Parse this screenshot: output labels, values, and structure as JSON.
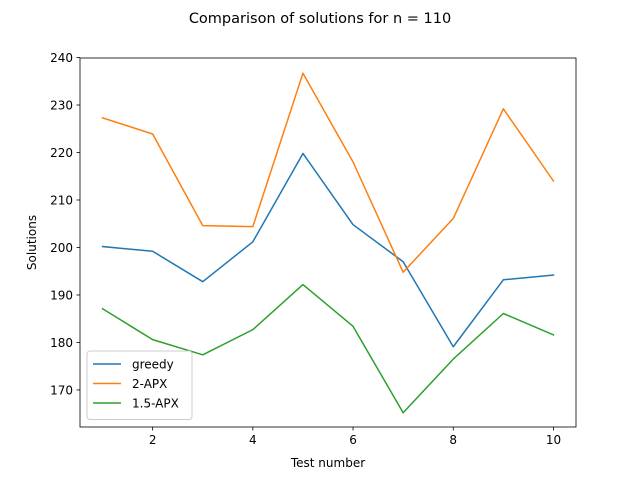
{
  "chart_data": {
    "type": "line",
    "title": "Comparison of solutions for n = 110",
    "xlabel": "Test number",
    "ylabel": "Solutions",
    "x": [
      1,
      2,
      3,
      4,
      5,
      6,
      7,
      8,
      9,
      10
    ],
    "xlim": [
      0.55,
      10.45
    ],
    "ylim": [
      162.2,
      239.9
    ],
    "xticks": [
      2,
      4,
      6,
      8,
      10
    ],
    "yticks": [
      170,
      180,
      190,
      200,
      210,
      220,
      230,
      240
    ],
    "grid": false,
    "legend": "lower-left",
    "series": [
      {
        "name": "greedy",
        "color": "#1f77b4",
        "values": [
          200.2,
          199.2,
          192.8,
          201.2,
          219.8,
          204.8,
          197.0,
          179.1,
          193.2,
          194.2
        ]
      },
      {
        "name": "2-APX",
        "color": "#ff7f0e",
        "values": [
          227.3,
          223.9,
          204.6,
          204.4,
          236.7,
          218.0,
          194.8,
          206.1,
          229.2,
          214.0
        ]
      },
      {
        "name": "1.5-APX",
        "color": "#2ca02c",
        "values": [
          187.1,
          180.6,
          177.4,
          182.7,
          192.2,
          183.4,
          165.2,
          176.5,
          186.1,
          181.6
        ]
      }
    ]
  }
}
